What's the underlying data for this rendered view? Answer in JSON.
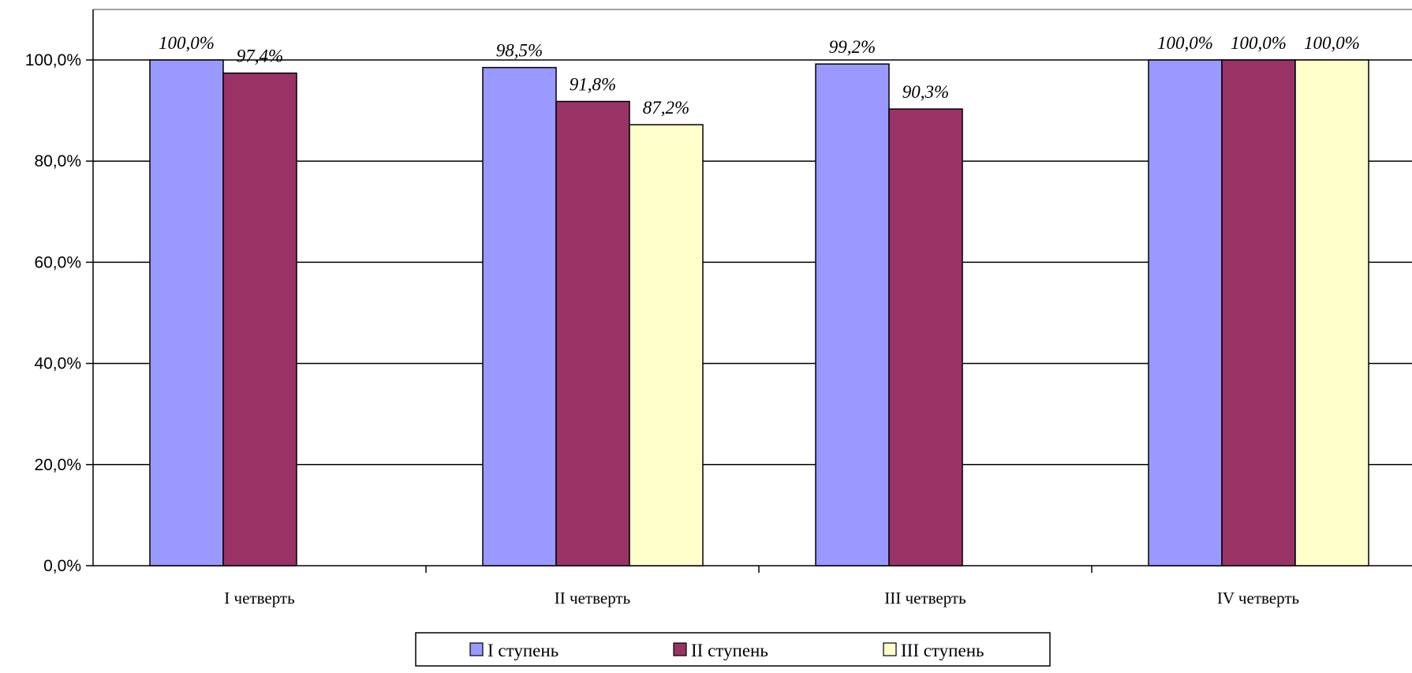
{
  "chart_data": {
    "type": "bar",
    "title": "",
    "xlabel": "",
    "ylabel": "",
    "categories": [
      "I четверть",
      "II четверть",
      "III четверть",
      "IV четверть"
    ],
    "series": [
      {
        "name": "I ступень",
        "color": "#9999ff",
        "values": [
          100.0,
          98.5,
          99.2,
          100.0
        ],
        "labels": [
          "100,0%",
          "98,5%",
          "99,2%",
          "100,0%"
        ]
      },
      {
        "name": "II ступень",
        "color": "#993366",
        "values": [
          97.4,
          91.8,
          90.3,
          100.0
        ],
        "labels": [
          "97,4%",
          "91,8%",
          "90,3%",
          "100,0%"
        ]
      },
      {
        "name": "III ступень",
        "color": "#ffffcc",
        "values": [
          null,
          87.2,
          null,
          100.0
        ],
        "labels": [
          "",
          "87,2%",
          "",
          "100,0%"
        ]
      }
    ],
    "ylim": [
      0,
      100
    ],
    "yticks": [
      0,
      20,
      40,
      60,
      80,
      100
    ],
    "ytick_labels": [
      "0,0%",
      "20,0%",
      "40,0%",
      "60,0%",
      "80,0%",
      "100,0%"
    ],
    "grid": true,
    "legend_position": "bottom"
  }
}
